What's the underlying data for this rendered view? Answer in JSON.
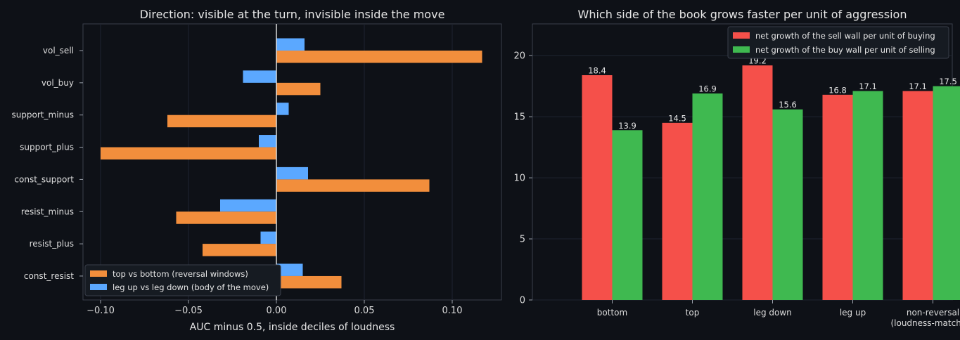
{
  "chart_data": [
    {
      "type": "bar",
      "orientation": "horizontal",
      "title": "Direction: visible at the turn, invisible inside the move",
      "xlabel": "AUC minus 0.5, inside deciles of loudness",
      "ylabel": "",
      "xlim": [
        -0.11,
        0.128
      ],
      "xticks": [
        -0.1,
        -0.05,
        0.0,
        0.05,
        0.1
      ],
      "xtick_labels": [
        "−0.10",
        "−0.05",
        "0.00",
        "0.05",
        "0.10"
      ],
      "grid": true,
      "legend_position": "lower-left",
      "categories": [
        "vol_sell",
        "vol_buy",
        "support_minus",
        "support_plus",
        "const_support",
        "resist_minus",
        "resist_plus",
        "const_resist"
      ],
      "series": [
        {
          "name": "top vs bottom (reversal windows)",
          "color": "#f28e3c",
          "values": [
            0.117,
            0.025,
            -0.062,
            -0.1,
            0.087,
            -0.057,
            -0.042,
            0.037
          ]
        },
        {
          "name": "leg up vs leg down (body of the move)",
          "color": "#5ba8ff",
          "values": [
            0.016,
            -0.019,
            0.007,
            -0.01,
            0.018,
            -0.032,
            -0.009,
            0.015
          ]
        }
      ]
    },
    {
      "type": "bar",
      "title": "Which side of the book grows faster per unit of aggression",
      "xlabel": "",
      "ylabel": "",
      "ylim": [
        0,
        22.6
      ],
      "yticks": [
        0,
        5,
        10,
        15,
        20
      ],
      "grid": true,
      "legend_position": "top-right",
      "categories": [
        {
          "line1": "bottom",
          "line2": ""
        },
        {
          "line1": "top",
          "line2": ""
        },
        {
          "line1": "leg down",
          "line2": ""
        },
        {
          "line1": "leg up",
          "line2": ""
        },
        {
          "line1": "non-reversal",
          "line2": "(loudness-matched)"
        }
      ],
      "series": [
        {
          "name": "net growth of the sell wall per unit of buying",
          "color": "#f5504a",
          "values": [
            18.4,
            14.5,
            19.2,
            16.8,
            17.1
          ]
        },
        {
          "name": "net growth of the buy wall per unit of selling",
          "color": "#3fb950",
          "values": [
            13.9,
            16.9,
            15.6,
            17.1,
            17.5
          ]
        }
      ]
    }
  ]
}
